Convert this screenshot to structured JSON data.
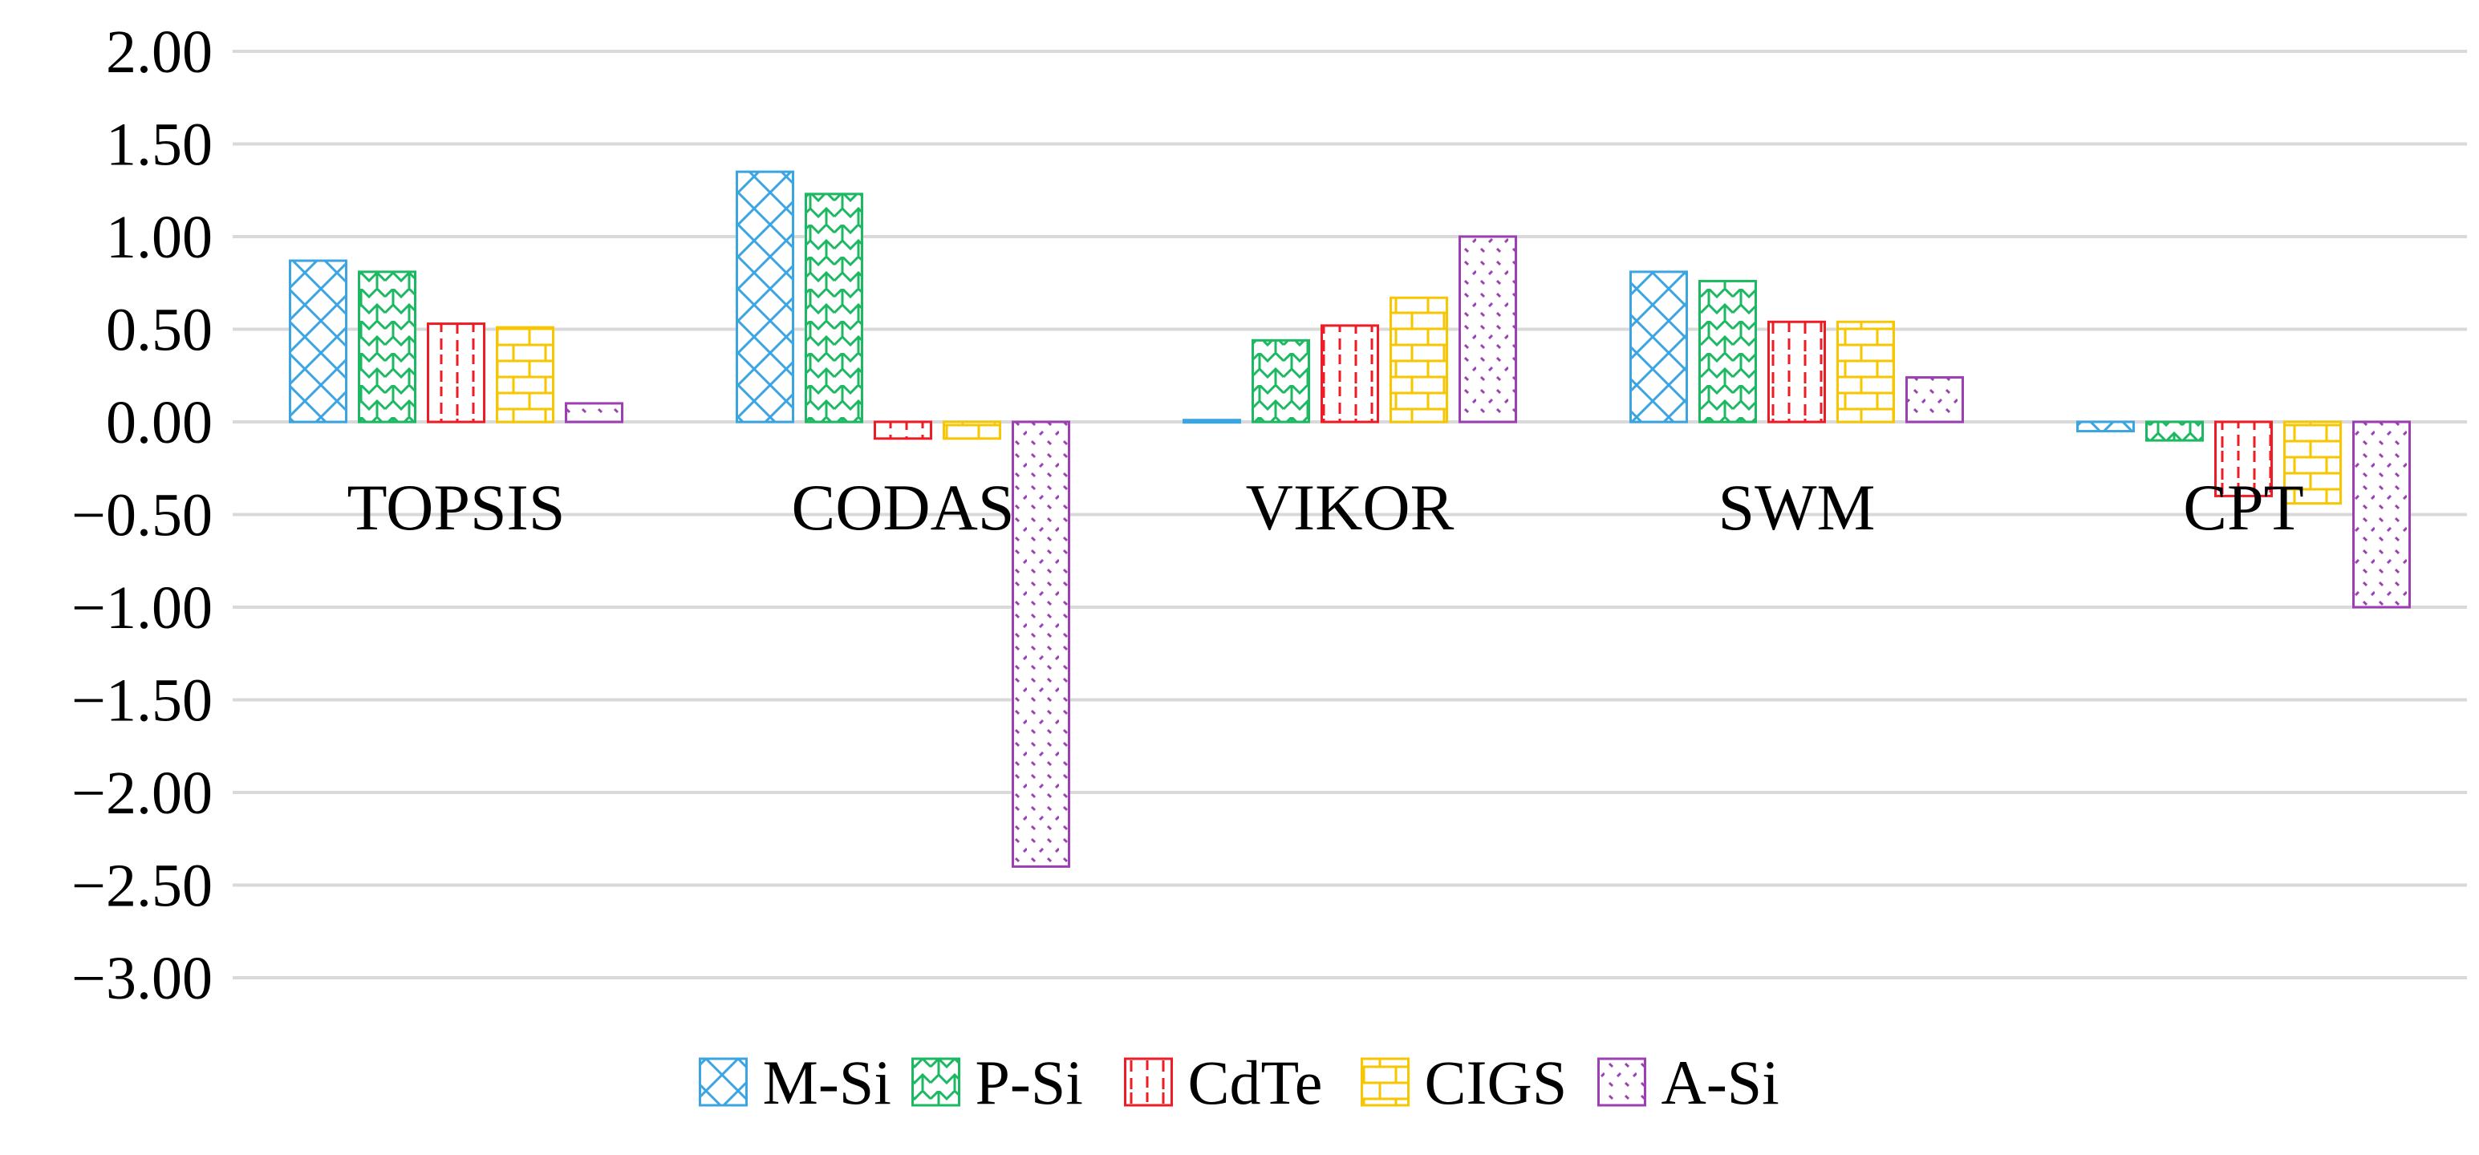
{
  "chart_data": {
    "type": "bar",
    "categories": [
      "TOPSIS",
      "CODAS",
      "VIKOR",
      "SWM",
      "CPT"
    ],
    "series": [
      {
        "name": "M-Si",
        "values": [
          0.87,
          1.35,
          0.01,
          0.81,
          -0.05
        ],
        "color": "#3aa5e0",
        "pattern": "diagonal-cross"
      },
      {
        "name": "P-Si",
        "values": [
          0.81,
          1.23,
          0.44,
          0.76,
          -0.1
        ],
        "color": "#1db962",
        "pattern": "zigzag"
      },
      {
        "name": "CdTe",
        "values": [
          0.53,
          -0.09,
          0.52,
          0.54,
          -0.4
        ],
        "color": "#ee1c25",
        "pattern": "dashed-vertical"
      },
      {
        "name": "CIGS",
        "values": [
          0.51,
          -0.09,
          0.67,
          0.54,
          -0.44
        ],
        "color": "#f7c600",
        "pattern": "brick"
      },
      {
        "name": "A-Si",
        "values": [
          0.1,
          -2.4,
          1.0,
          0.24,
          -1.0
        ],
        "color": "#9e3eb5",
        "pattern": "dots"
      }
    ],
    "y_ticks": [
      "2.00",
      "1.50",
      "1.00",
      "0.50",
      "0.00",
      "−0.50",
      "−1.00",
      "−1.50",
      "−2.00",
      "−2.50",
      "−3.00"
    ],
    "ylim": [
      -3.0,
      2.0
    ],
    "grid": true,
    "legend_position": "bottom",
    "title": "",
    "xlabel": "",
    "ylabel": ""
  }
}
